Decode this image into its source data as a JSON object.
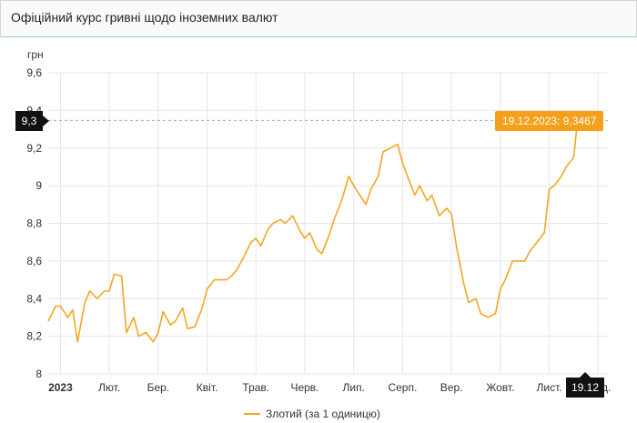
{
  "header": {
    "title": "Офіційний курс гривні щодо іноземних валют"
  },
  "chart_data": {
    "type": "line",
    "ylabel": "грн",
    "ylim": [
      8,
      9.6
    ],
    "yticks": [
      "9,6",
      "9,4",
      "9,2",
      "9",
      "8,8",
      "8,6",
      "8,4",
      "8,2",
      "8"
    ],
    "ytick_values": [
      9.6,
      9.4,
      9.2,
      9.0,
      8.8,
      8.6,
      8.4,
      8.2,
      8.0
    ],
    "xticks": [
      "2023",
      "Лют.",
      "Бер.",
      "Квіт.",
      "Трав.",
      "Черв.",
      "Лип.",
      "Серп.",
      "Вер.",
      "Жовт.",
      "Лист.",
      "Груд."
    ],
    "xtick_months": [
      1,
      2,
      3,
      4,
      5,
      6,
      7,
      8,
      9,
      10,
      11,
      12
    ],
    "series": [
      {
        "name": "Злотий (за 1 одиницю)",
        "color": "#f5a623",
        "x_month": [
          0.75,
          0.9,
          1.0,
          1.15,
          1.25,
          1.35,
          1.5,
          1.6,
          1.75,
          1.9,
          2.0,
          2.1,
          2.25,
          2.35,
          2.5,
          2.6,
          2.75,
          2.9,
          3.0,
          3.1,
          3.25,
          3.35,
          3.5,
          3.6,
          3.75,
          3.9,
          4.0,
          4.15,
          4.25,
          4.4,
          4.5,
          4.6,
          4.75,
          4.9,
          5.0,
          5.1,
          5.25,
          5.35,
          5.5,
          5.6,
          5.75,
          5.9,
          6.0,
          6.1,
          6.25,
          6.35,
          6.5,
          6.6,
          6.75,
          6.9,
          7.0,
          7.1,
          7.25,
          7.35,
          7.5,
          7.6,
          7.75,
          7.9,
          8.0,
          8.1,
          8.25,
          8.35,
          8.5,
          8.6,
          8.75,
          8.9,
          9.0,
          9.1,
          9.25,
          9.35,
          9.5,
          9.6,
          9.75,
          9.9,
          10.0,
          10.1,
          10.25,
          10.35,
          10.5,
          10.6,
          10.75,
          10.9,
          11.0,
          11.1,
          11.25,
          11.35,
          11.5,
          11.58
        ],
        "values": [
          8.28,
          8.36,
          8.36,
          8.3,
          8.34,
          8.17,
          8.38,
          8.44,
          8.4,
          8.44,
          8.44,
          8.53,
          8.52,
          8.22,
          8.3,
          8.2,
          8.22,
          8.17,
          8.22,
          8.33,
          8.26,
          8.28,
          8.35,
          8.24,
          8.25,
          8.35,
          8.45,
          8.5,
          8.5,
          8.5,
          8.52,
          8.55,
          8.62,
          8.7,
          8.72,
          8.68,
          8.77,
          8.8,
          8.82,
          8.8,
          8.84,
          8.76,
          8.72,
          8.75,
          8.66,
          8.64,
          8.74,
          8.82,
          8.92,
          9.05,
          9.0,
          8.96,
          8.9,
          8.98,
          9.05,
          9.18,
          9.2,
          9.22,
          9.12,
          9.05,
          8.95,
          9.0,
          8.92,
          8.95,
          8.84,
          8.88,
          8.85,
          8.68,
          8.48,
          8.38,
          8.4,
          8.32,
          8.3,
          8.32,
          8.45,
          8.5,
          8.6,
          8.6,
          8.6,
          8.65,
          8.7,
          8.75,
          8.98,
          9.0,
          9.05,
          9.1,
          9.15,
          9.3467
        ]
      }
    ],
    "legend": "bottom-center",
    "highlight": {
      "label": "19.12.2023: 9,3467",
      "date": "19.12.2023",
      "value": 9.3467
    },
    "crosshair": {
      "y_label": "9,3",
      "x_label": "19.12"
    }
  }
}
